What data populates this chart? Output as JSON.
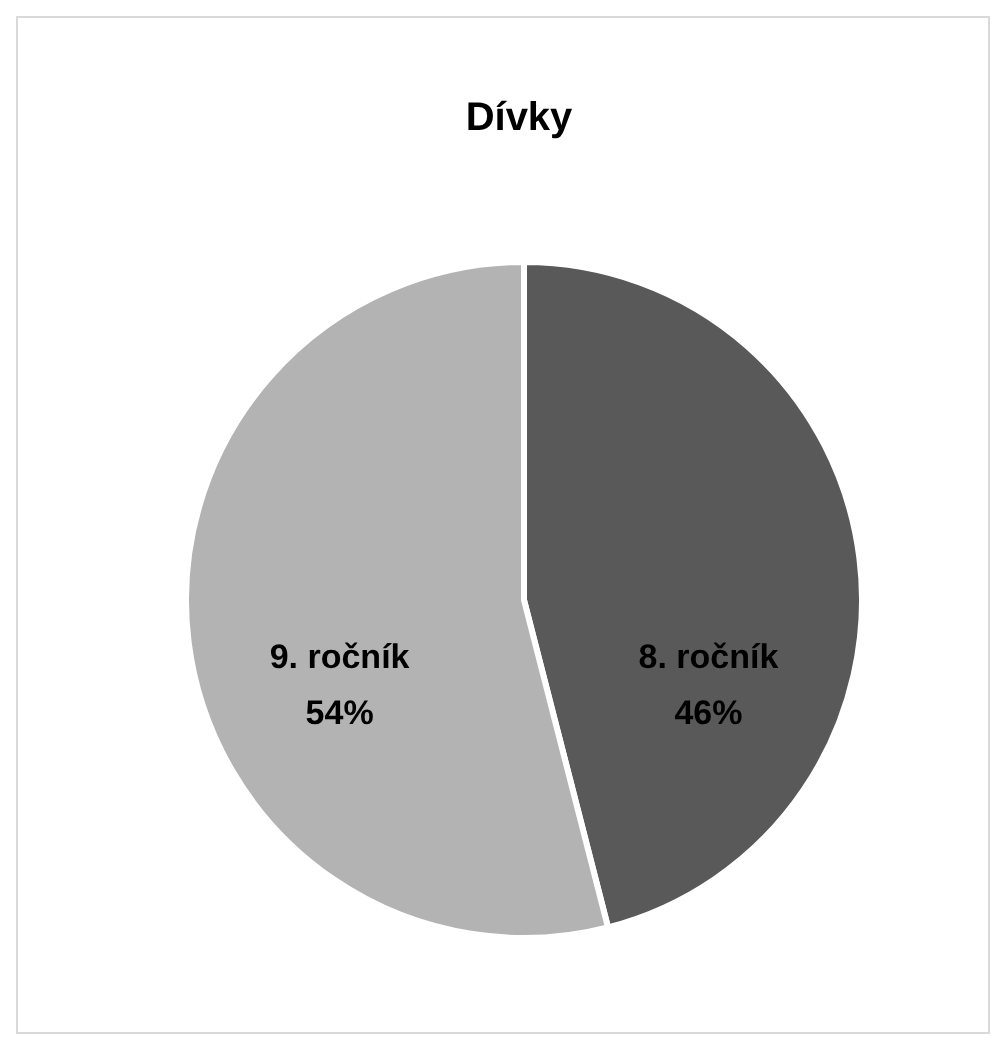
{
  "chart_data": {
    "type": "pie",
    "title": "Dívky",
    "categories": [
      "8. ročník",
      "9. ročník"
    ],
    "values": [
      46,
      54
    ],
    "colors": [
      "#595959",
      "#b3b3b3"
    ],
    "value_labels": [
      "46%",
      "54%"
    ]
  }
}
